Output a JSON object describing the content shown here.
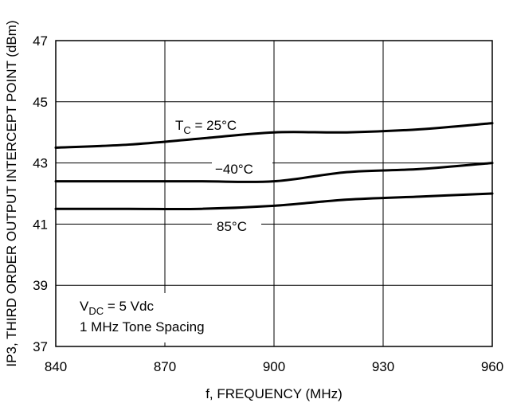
{
  "chart_data": {
    "type": "line",
    "xlabel": "f, FREQUENCY (MHz)",
    "ylabel": "IP3, THIRD ORDER OUTPUT INTERCEPT POINT (dBm)",
    "xlim": [
      840,
      960
    ],
    "ylim": [
      37,
      47
    ],
    "x_ticks": [
      "840",
      "870",
      "900",
      "930",
      "960"
    ],
    "y_ticks": [
      "37",
      "39",
      "41",
      "43",
      "45",
      "47"
    ],
    "grid": true,
    "x": [
      840,
      860,
      880,
      900,
      920,
      940,
      960
    ],
    "series": [
      {
        "name": "TC = 25°C",
        "values": [
          43.5,
          43.6,
          43.8,
          44.0,
          44.0,
          44.1,
          44.3
        ]
      },
      {
        "name": "−40°C",
        "values": [
          42.4,
          42.4,
          42.4,
          42.4,
          42.7,
          42.8,
          43.0
        ]
      },
      {
        "name": "85°C",
        "values": [
          41.5,
          41.5,
          41.5,
          41.6,
          41.8,
          41.9,
          42.0
        ]
      }
    ],
    "labels": {
      "tc_main": "T",
      "tc_sub": "C",
      "tc_rest": " = 25°C",
      "minus40": "−40°C",
      "plus85": "85°C"
    },
    "annotation": {
      "vdc_main": "V",
      "vdc_sub": "DC",
      "vdc_rest": " = 5 Vdc",
      "spacing": "1 MHz Tone Spacing"
    }
  }
}
